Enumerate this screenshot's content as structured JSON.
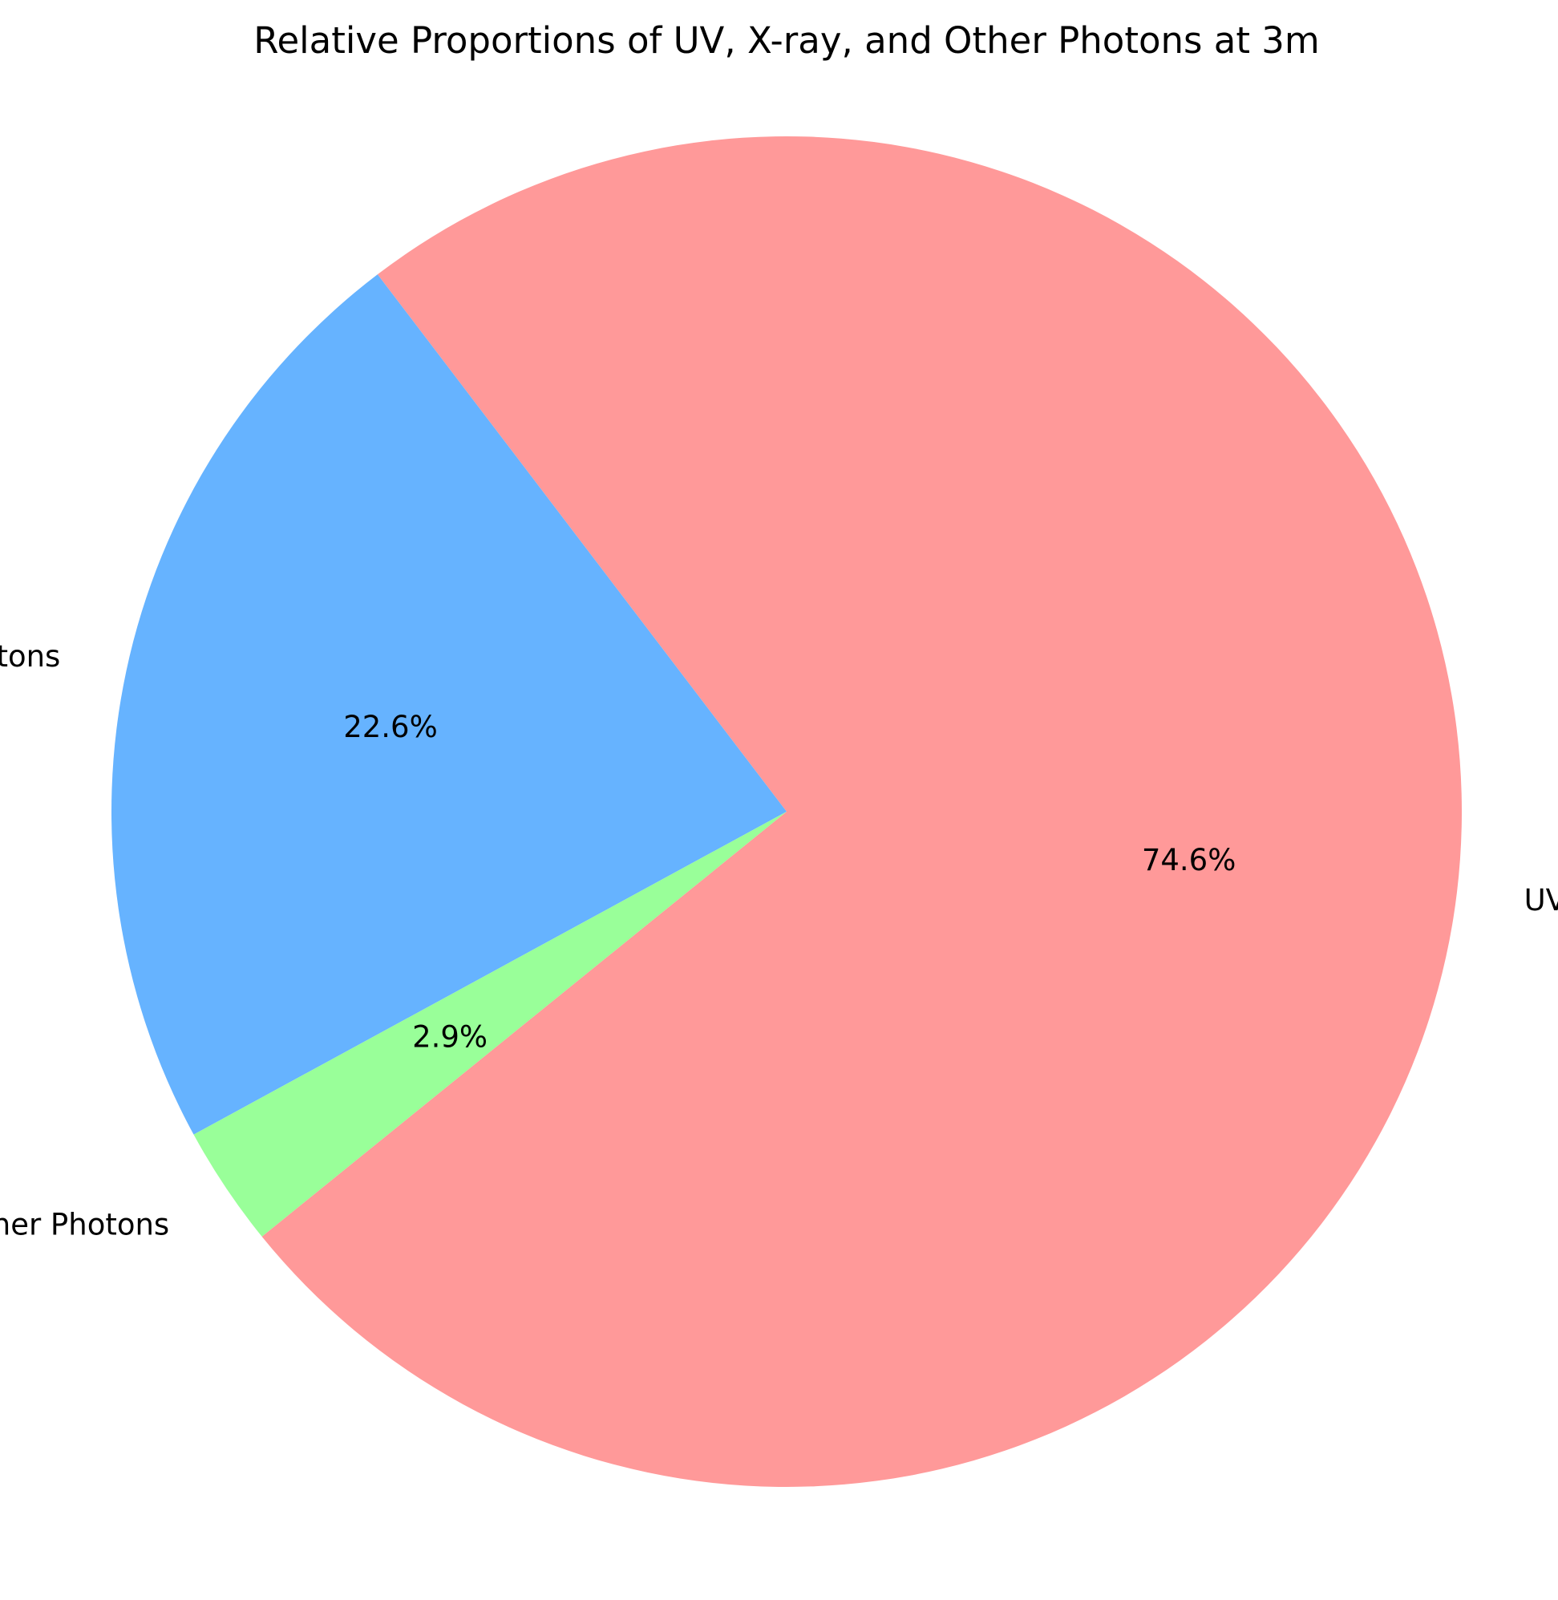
{
  "chart_data": {
    "type": "pie",
    "title": "Relative Proportions of UV, X-ray, and Other Photons at 3m",
    "slices": [
      {
        "label": "UV Photons",
        "value": 74.6,
        "pct_label": "74.6%",
        "color": "#ff9999"
      },
      {
        "label": "X-ray Photons",
        "value": 22.6,
        "pct_label": "22.6%",
        "color": "#66b3ff"
      },
      {
        "label": "Other Photons",
        "value": 2.9,
        "pct_label": "2.9%",
        "color": "#99ff99"
      }
    ]
  }
}
